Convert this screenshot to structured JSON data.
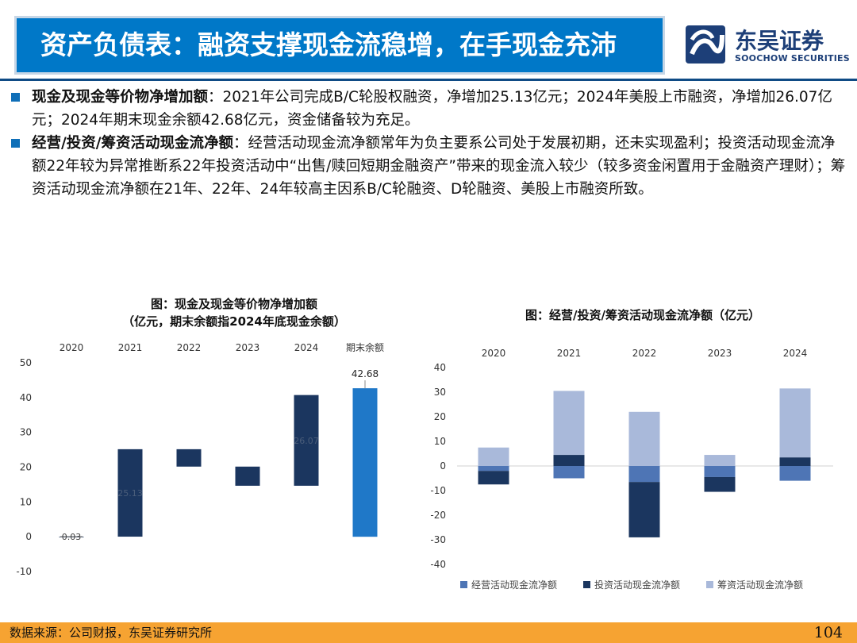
{
  "header": {
    "title": "资产负债表：融资支撑现金流稳增，在手现金充沛",
    "logo_name": "东吴证券",
    "logo_sub": "SOOCHOW SECURITIES"
  },
  "bullets": [
    {
      "lead": "现金及现金等价物净增加额",
      "text": "：2021年公司完成B/C轮股权融资，净增加25.13亿元；2024年美股上市融资，净增加26.07亿元；2024年期末现金余额42.68亿元，资金储备较为充足。"
    },
    {
      "lead": "经营/投资/筹资活动现金流净额",
      "text": "：经营活动现金流净额常年为负主要系公司处于发展初期，还未实现盈利；投资活动现金流净额22年较为异常推断系22年投资活动中“出售/赎回短期金融资产”带来的现金流入较少（较多资金闲置用于金融资产理财）；筹资活动现金流净额在21年、22年、24年较高主因系B/C轮融资、D轮融资、美股上市融资所致。"
    }
  ],
  "chart_data": [
    {
      "type": "bar",
      "subtype": "waterfall",
      "title_line1": "图：现金及现金等价物净增加额",
      "title_line2": "（亿元，期末余额指2024年底现金余额）",
      "categories": [
        "2020",
        "2021",
        "2022",
        "2023",
        "2024",
        "期末余额"
      ],
      "values": [
        0.03,
        25.13,
        -5.0,
        -5.5,
        26.07,
        42.68
      ],
      "labels": [
        "0.03",
        "25.13",
        "",
        "",
        "26.07",
        "42.68"
      ],
      "ylim": [
        -10,
        50
      ],
      "yticks": [
        50,
        40,
        30,
        20,
        10,
        0,
        -10
      ],
      "grid": false,
      "colors": {
        "change": "#1b365f",
        "total": "#1f78c8"
      }
    },
    {
      "type": "bar",
      "subtype": "stacked",
      "title": "图：经营/投资/筹资活动现金流净额（亿元）",
      "categories": [
        "2020",
        "2021",
        "2022",
        "2023",
        "2024"
      ],
      "series": [
        {
          "name": "经营活动现金流净额",
          "color": "#4e75b5",
          "values": [
            -2.0,
            -5.0,
            -6.5,
            -4.5,
            -6.0
          ]
        },
        {
          "name": "投资活动现金流净额",
          "color": "#1b365f",
          "values": [
            -5.5,
            4.5,
            -22.5,
            -6.0,
            3.5
          ]
        },
        {
          "name": "筹资活动现金流净额",
          "color": "#a9b9da",
          "values": [
            7.5,
            26.0,
            22.0,
            4.5,
            28.0
          ]
        }
      ],
      "ylim": [
        -40,
        40
      ],
      "yticks": [
        40,
        30,
        20,
        10,
        0,
        -10,
        -20,
        -30,
        -40
      ],
      "legend_position": "bottom",
      "grid": false
    }
  ],
  "footer": {
    "source": "数据来源：公司财报，东吴证券研究所",
    "page": "104"
  }
}
